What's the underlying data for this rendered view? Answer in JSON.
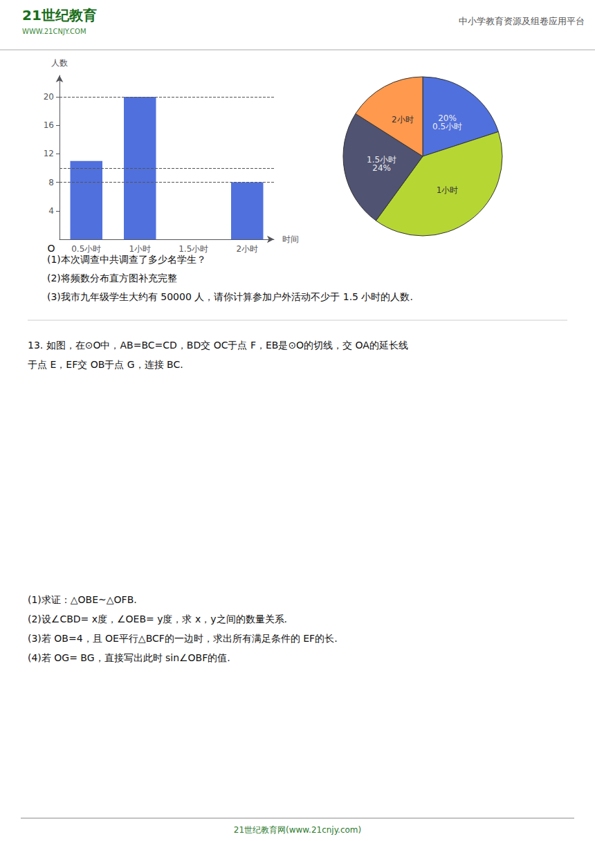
{
  "chart_data": [
    {
      "type": "bar",
      "categories": [
        "0.5小时",
        "1小时",
        "1.5小时",
        "2小时"
      ],
      "values": [
        11,
        20,
        0,
        8
      ],
      "xlabel": "时间",
      "ylabel": "人数",
      "ylim": [
        0,
        23
      ],
      "yticks": [
        4,
        8,
        12,
        16,
        20
      ],
      "reference_lines": [
        8,
        10,
        20
      ],
      "grid": false,
      "annotations": [
        "O",
        "(1)本次调查中共调查了多少名学生？",
        "(2)将频数分布直方图补充完整",
        "(3)我市九年级学生大约有 50000 人，请你计算参加户外活动不少于 1.5 小时的人数."
      ]
    },
    {
      "type": "pie",
      "values": [
        20,
        40,
        24,
        16
      ],
      "labels": [
        "20%\n0.5小时",
        "1小时",
        "1.5小时\n24%",
        "2小时"
      ]
    },
    {
      "type": "text",
      "annotations": [
        "21世纪教育",
        "WWW.21CNJY.COM",
        "中小学教育资源及组卷应用平台",
        "13. 如图，在⊙O中，AB=BC=CD，BD交 OC于点 F，EB是⊙O的切线，交 OA的延长线",
        "于点 E，EF交 OB于点 G，连接 BC.",
        "(1)求证：△OBE~△OFB.",
        "(2)设∠CBD= x度，∠OEB= y度，求 x，y之间的数量关系.",
        "(3)若 OB=4，且 OE平行△BCF的一边时，求出所有满足条件的 EF的长.",
        "(4)若 OG= BG，直接写出此时 sin∠OBF的值.",
        "21世纪教育网(www.21cnjy.com)"
      ]
    }
  ]
}
